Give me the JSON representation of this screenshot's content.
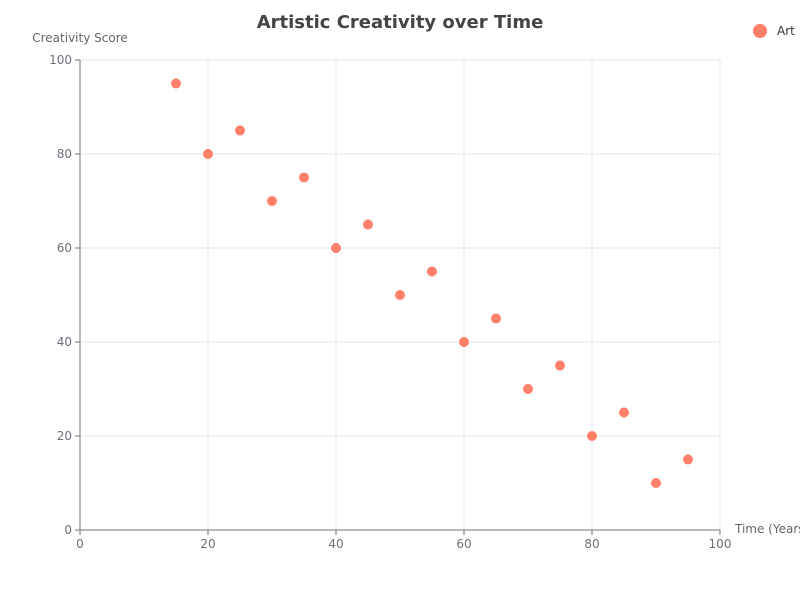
{
  "chart_data": {
    "type": "scatter",
    "title": "Artistic Creativity over Time",
    "xlabel": "Time (Years)",
    "ylabel": "Creativity Score",
    "xlim": [
      0,
      100
    ],
    "ylim": [
      0,
      100
    ],
    "xticks": [
      0,
      20,
      40,
      60,
      80,
      100
    ],
    "yticks": [
      0,
      20,
      40,
      60,
      80,
      100
    ],
    "grid": true,
    "legend_position": "top-right",
    "series": [
      {
        "name": "Art",
        "color": "#ff7f69",
        "points": [
          {
            "x": 15,
            "y": 95
          },
          {
            "x": 20,
            "y": 80
          },
          {
            "x": 25,
            "y": 85
          },
          {
            "x": 30,
            "y": 70
          },
          {
            "x": 35,
            "y": 75
          },
          {
            "x": 40,
            "y": 60
          },
          {
            "x": 45,
            "y": 65
          },
          {
            "x": 50,
            "y": 50
          },
          {
            "x": 55,
            "y": 55
          },
          {
            "x": 60,
            "y": 40
          },
          {
            "x": 65,
            "y": 45
          },
          {
            "x": 70,
            "y": 30
          },
          {
            "x": 75,
            "y": 35
          },
          {
            "x": 80,
            "y": 20
          },
          {
            "x": 85,
            "y": 25
          },
          {
            "x": 90,
            "y": 10
          },
          {
            "x": 95,
            "y": 15
          }
        ]
      }
    ]
  }
}
